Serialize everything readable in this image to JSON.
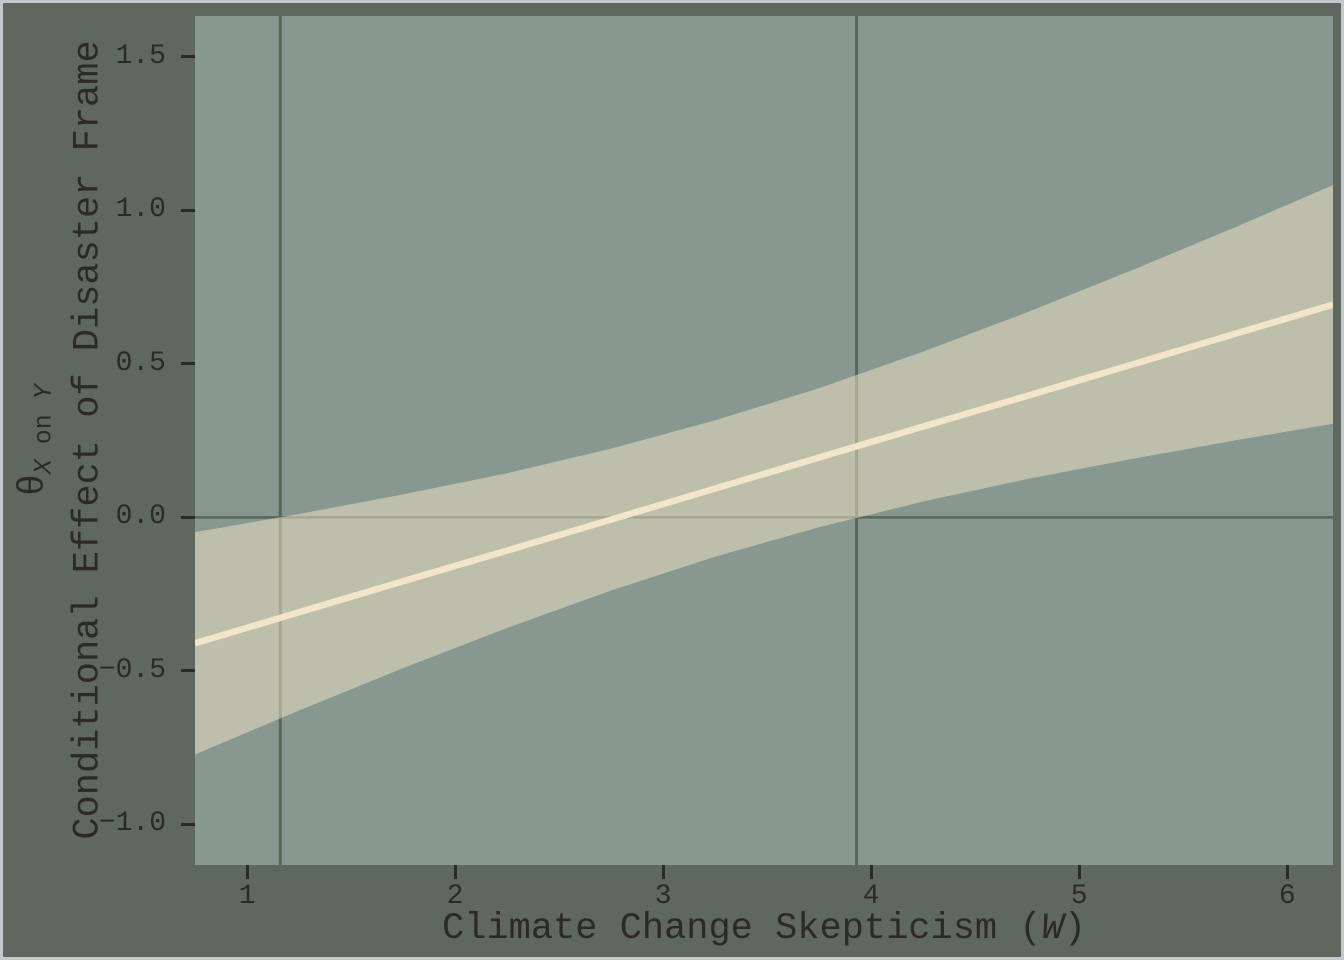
{
  "colors": {
    "figure_bg": "#5e685e",
    "plot_bg": "#869890",
    "band_fill": "#f0e2c6",
    "band_opacity": 0.52,
    "effect_line": "#f3e5c9",
    "reference_line": "#596759",
    "text": "#2d2a25",
    "tick": "#2d2a25",
    "frame_border": "#c3c9cc"
  },
  "x_axis": {
    "label_prefix": "Climate Change Skepticism (",
    "label_var": "W",
    "label_suffix": ")",
    "tick_values": [
      1,
      2,
      3,
      4,
      5,
      6
    ],
    "tick_labels": [
      "1",
      "2",
      "3",
      "4",
      "5",
      "6"
    ]
  },
  "y_axis": {
    "label_theta": "θ",
    "label_sub_x": "X",
    "label_sub_mid": " on ",
    "label_sub_y": "Y",
    "label_main": "Conditional Effect of Disaster Frame",
    "tick_values": [
      1.5,
      1.0,
      0.5,
      0.0,
      -0.5,
      -1.0
    ],
    "tick_labels": [
      "1.5",
      "1.0",
      "0.5",
      "0.0",
      "−0.5",
      "−1.0"
    ]
  },
  "chart_data": {
    "type": "line",
    "title": "",
    "xlabel": "Climate Change Skepticism (W)",
    "ylabel": "θ_{X on Y} Conditional Effect of Disaster Frame",
    "xlim": [
      0.75,
      6.22
    ],
    "ylim": [
      -1.132,
      1.633
    ],
    "grid": false,
    "x": [
      0.75,
      1.25,
      1.75,
      2.25,
      2.75,
      3.25,
      3.75,
      4.25,
      4.75,
      5.25,
      5.75,
      6.22
    ],
    "series": [
      {
        "name": "conditional_effect",
        "values": [
          -0.41,
          -0.309,
          -0.208,
          -0.108,
          -0.007,
          0.094,
          0.195,
          0.296,
          0.396,
          0.497,
          0.598,
          0.693
        ]
      }
    ],
    "confidence_band": {
      "upper": [
        -0.048,
        0.011,
        0.075,
        0.144,
        0.224,
        0.316,
        0.421,
        0.54,
        0.668,
        0.804,
        0.945,
        1.082
      ],
      "lower": [
        -0.772,
        -0.629,
        -0.491,
        -0.36,
        -0.238,
        -0.128,
        -0.032,
        0.052,
        0.125,
        0.19,
        0.251,
        0.305
      ]
    },
    "reference_lines": {
      "horizontal_y": [
        0
      ],
      "vertical_x": [
        1.16,
        3.93
      ]
    }
  }
}
